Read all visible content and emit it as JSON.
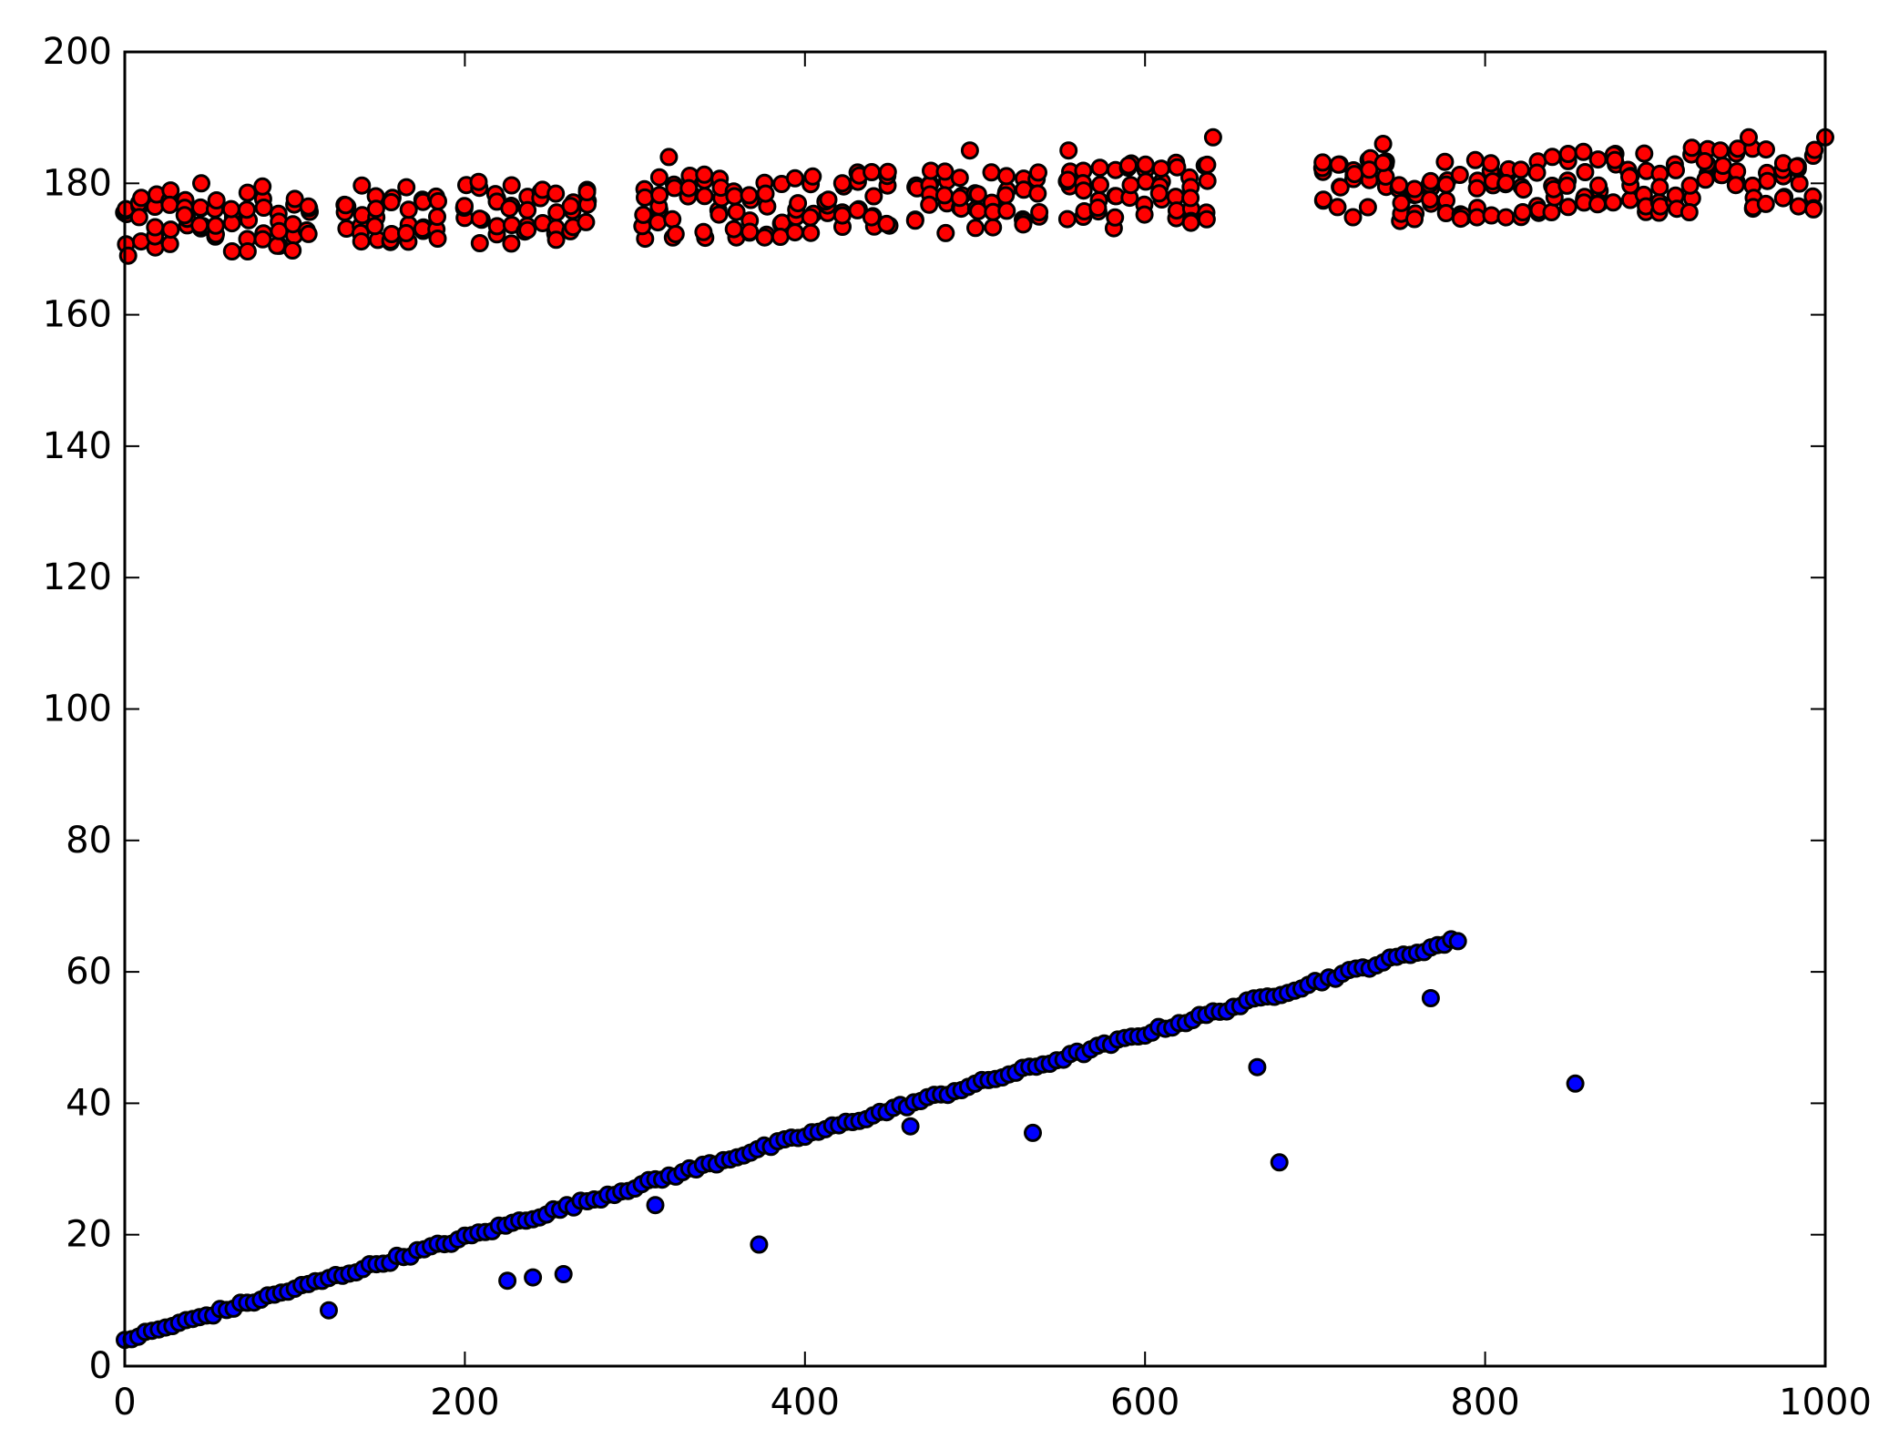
{
  "chart_data": {
    "type": "scatter",
    "title": "",
    "xlabel": "",
    "ylabel": "",
    "xlim": [
      0,
      1000
    ],
    "ylim": [
      0,
      200
    ],
    "xticks": [
      "0",
      "200",
      "400",
      "600",
      "800",
      "1000"
    ],
    "yticks": [
      "0",
      "20",
      "40",
      "60",
      "80",
      "100",
      "120",
      "140",
      "160",
      "180",
      "200"
    ],
    "grid": false,
    "legend": "none",
    "colors": {
      "upper": "#ff0000",
      "lower": "#0000ff",
      "edge": "#000000"
    },
    "series": [
      {
        "color": "#ff0000",
        "x_ranges": [
          [
            0,
            115
          ],
          [
            130,
            190
          ],
          [
            200,
            275
          ],
          [
            305,
            450
          ],
          [
            465,
            545
          ],
          [
            555,
            640
          ],
          [
            705,
            1000
          ]
        ],
        "y_trend": {
          "at_x0": 174,
          "at_x1000": 181
        },
        "y_spread": 5,
        "notable_points": [
          {
            "x": 2,
            "y": 169
          },
          {
            "x": 45,
            "y": 180
          },
          {
            "x": 320,
            "y": 184
          },
          {
            "x": 497,
            "y": 185
          },
          {
            "x": 555,
            "y": 185
          },
          {
            "x": 627,
            "y": 174
          },
          {
            "x": 640,
            "y": 187
          },
          {
            "x": 740,
            "y": 186
          },
          {
            "x": 955,
            "y": 187
          },
          {
            "x": 1000,
            "y": 187
          }
        ]
      },
      {
        "color": "#0000ff",
        "trend": {
          "x_start": 0,
          "y_start": 4,
          "x_end": 785,
          "y_end": 65
        },
        "outliers": [
          {
            "x": 120,
            "y": 8.5
          },
          {
            "x": 225,
            "y": 13
          },
          {
            "x": 240,
            "y": 13.5
          },
          {
            "x": 258,
            "y": 14
          },
          {
            "x": 312,
            "y": 24.5
          },
          {
            "x": 373,
            "y": 18.5
          },
          {
            "x": 462,
            "y": 36.5
          },
          {
            "x": 534,
            "y": 35.5
          },
          {
            "x": 666,
            "y": 45.5
          },
          {
            "x": 679,
            "y": 31
          },
          {
            "x": 768,
            "y": 56
          },
          {
            "x": 853,
            "y": 43
          }
        ]
      }
    ]
  }
}
